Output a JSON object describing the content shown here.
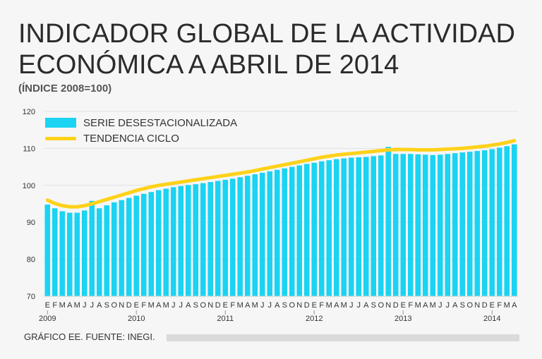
{
  "title_line1": "INDICADOR GLOBAL DE LA ACTIVIDAD",
  "title_line2": "ECONÓMICA A ABRIL DE 2014",
  "subtitle": "(ÍNDICE 2008=100)",
  "source": "GRÁFICO EE. FUENTE: INEGI.",
  "colors": {
    "bars": "#1bd3f2",
    "bar_shade": "#13b5d4",
    "trend": "#ffd21a",
    "grid": "#ffffff",
    "text": "#333333"
  },
  "chart_data": {
    "type": "bar",
    "title": "INDICADOR GLOBAL DE LA ACTIVIDAD ECONÓMICA A ABRIL DE 2014",
    "ylabel": "(ÍNDICE 2008=100)",
    "ylim": [
      70,
      120
    ],
    "yticks": [
      70,
      80,
      90,
      100,
      110,
      120
    ],
    "grid": true,
    "legend_position": "top-left",
    "month_labels": [
      "E",
      "F",
      "M",
      "A",
      "M",
      "J",
      "J",
      "A",
      "S",
      "O",
      "N",
      "D",
      "E",
      "F",
      "M",
      "A",
      "M",
      "J",
      "J",
      "A",
      "S",
      "O",
      "N",
      "D",
      "E",
      "F",
      "M",
      "A",
      "M",
      "J",
      "J",
      "A",
      "S",
      "O",
      "N",
      "D",
      "E",
      "F",
      "M",
      "A",
      "M",
      "J",
      "J",
      "A",
      "S",
      "O",
      "N",
      "D",
      "E",
      "F",
      "M",
      "A",
      "M",
      "J",
      "J",
      "A",
      "S",
      "O",
      "N",
      "D",
      "E",
      "F",
      "M",
      "A"
    ],
    "year_labels": [
      {
        "label": "2009",
        "index": 0
      },
      {
        "label": "2010",
        "index": 12
      },
      {
        "label": "2011",
        "index": 24
      },
      {
        "label": "2012",
        "index": 36
      },
      {
        "label": "2013",
        "index": 48
      },
      {
        "label": "2014",
        "index": 60
      }
    ],
    "series": [
      {
        "name": "SERIE DESESTACIONALIZADA",
        "type": "bar",
        "values": [
          94.8,
          93.8,
          93.0,
          92.6,
          92.6,
          93.2,
          95.8,
          93.8,
          94.6,
          95.4,
          96.0,
          96.6,
          97.2,
          97.7,
          98.2,
          98.7,
          99.1,
          99.5,
          99.8,
          100.1,
          100.3,
          100.6,
          100.9,
          101.2,
          101.5,
          101.8,
          102.2,
          102.6,
          103.0,
          103.4,
          103.8,
          104.2,
          104.6,
          105.0,
          105.4,
          105.8,
          106.1,
          106.5,
          106.8,
          107.1,
          107.3,
          107.5,
          107.6,
          107.7,
          107.9,
          108.1,
          110.4,
          108.5,
          108.5,
          108.5,
          108.4,
          108.3,
          108.2,
          108.3,
          108.5,
          108.7,
          108.9,
          109.1,
          109.3,
          109.5,
          109.8,
          110.2,
          110.6,
          111.1
        ]
      },
      {
        "name": "TENDENCIA CICLO",
        "type": "line",
        "values": [
          96.0,
          95.1,
          94.5,
          94.2,
          94.2,
          94.5,
          95.0,
          95.6,
          96.2,
          96.8,
          97.4,
          98.0,
          98.6,
          99.1,
          99.6,
          100.0,
          100.3,
          100.6,
          100.9,
          101.2,
          101.5,
          101.8,
          102.1,
          102.4,
          102.7,
          103.0,
          103.3,
          103.6,
          104.0,
          104.4,
          104.8,
          105.2,
          105.6,
          106.0,
          106.4,
          106.8,
          107.2,
          107.6,
          107.9,
          108.2,
          108.4,
          108.6,
          108.8,
          109.0,
          109.2,
          109.4,
          109.6,
          109.7,
          109.7,
          109.7,
          109.6,
          109.6,
          109.6,
          109.7,
          109.8,
          109.9,
          110.0,
          110.2,
          110.4,
          110.6,
          110.9,
          111.2,
          111.6,
          112.1
        ]
      }
    ]
  }
}
